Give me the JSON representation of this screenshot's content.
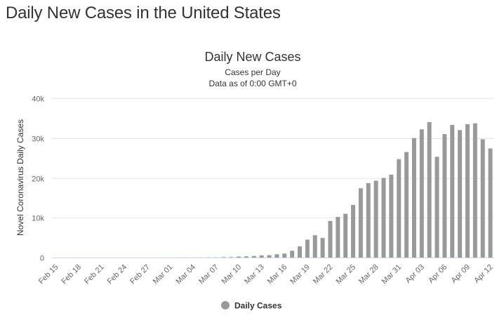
{
  "page": {
    "heading": "Daily New Cases in the United States"
  },
  "chart_data": {
    "type": "bar",
    "title": "Daily New Cases",
    "subtitle_lines": [
      "Cases per Day",
      "Data as of 0:00 GMT+0"
    ],
    "xlabel": "",
    "ylabel": "Novel Coronavirus Daily Cases",
    "ylim": [
      0,
      40000
    ],
    "yticks": [
      0,
      10000,
      20000,
      30000,
      40000
    ],
    "ytick_labels": [
      "0",
      "10k",
      "20k",
      "30k",
      "40k"
    ],
    "grid": true,
    "legend_position": "bottom-center",
    "bar_color": "#999999",
    "categories": [
      "Feb 15",
      "Feb 16",
      "Feb 17",
      "Feb 18",
      "Feb 19",
      "Feb 20",
      "Feb 21",
      "Feb 22",
      "Feb 23",
      "Feb 24",
      "Feb 25",
      "Feb 26",
      "Feb 27",
      "Feb 28",
      "Feb 29",
      "Mar 01",
      "Mar 02",
      "Mar 03",
      "Mar 04",
      "Mar 05",
      "Mar 06",
      "Mar 07",
      "Mar 08",
      "Mar 09",
      "Mar 10",
      "Mar 11",
      "Mar 12",
      "Mar 13",
      "Mar 14",
      "Mar 15",
      "Mar 16",
      "Mar 17",
      "Mar 18",
      "Mar 19",
      "Mar 20",
      "Mar 21",
      "Mar 22",
      "Mar 23",
      "Mar 24",
      "Mar 25",
      "Mar 26",
      "Mar 27",
      "Mar 28",
      "Mar 29",
      "Mar 30",
      "Mar 31",
      "Apr 01",
      "Apr 02",
      "Apr 03",
      "Apr 04",
      "Apr 05",
      "Apr 06",
      "Apr 07",
      "Apr 08",
      "Apr 09",
      "Apr 10",
      "Apr 11",
      "Apr 12"
    ],
    "tick_labels_shown": [
      "Feb 15",
      "Feb 18",
      "Feb 21",
      "Feb 24",
      "Feb 27",
      "Mar 01",
      "Mar 04",
      "Mar 07",
      "Mar 10",
      "Mar 13",
      "Mar 16",
      "Mar 19",
      "Mar 22",
      "Mar 25",
      "Mar 28",
      "Mar 31",
      "Apr 03",
      "Apr 06",
      "Apr 09",
      "Apr 12"
    ],
    "series": [
      {
        "name": "Daily Cases",
        "values": [
          0,
          0,
          3,
          0,
          1,
          0,
          2,
          0,
          0,
          0,
          0,
          1,
          0,
          0,
          7,
          9,
          23,
          25,
          19,
          30,
          46,
          54,
          120,
          130,
          250,
          300,
          400,
          550,
          600,
          820,
          1000,
          1700,
          2800,
          4500,
          5600,
          4900,
          9200,
          10200,
          11000,
          13200,
          17400,
          18700,
          19300,
          20000,
          20800,
          24700,
          26500,
          30000,
          32200,
          34000,
          25300,
          31000,
          33300,
          32000,
          33500,
          33700,
          29700,
          27400
        ]
      }
    ]
  }
}
